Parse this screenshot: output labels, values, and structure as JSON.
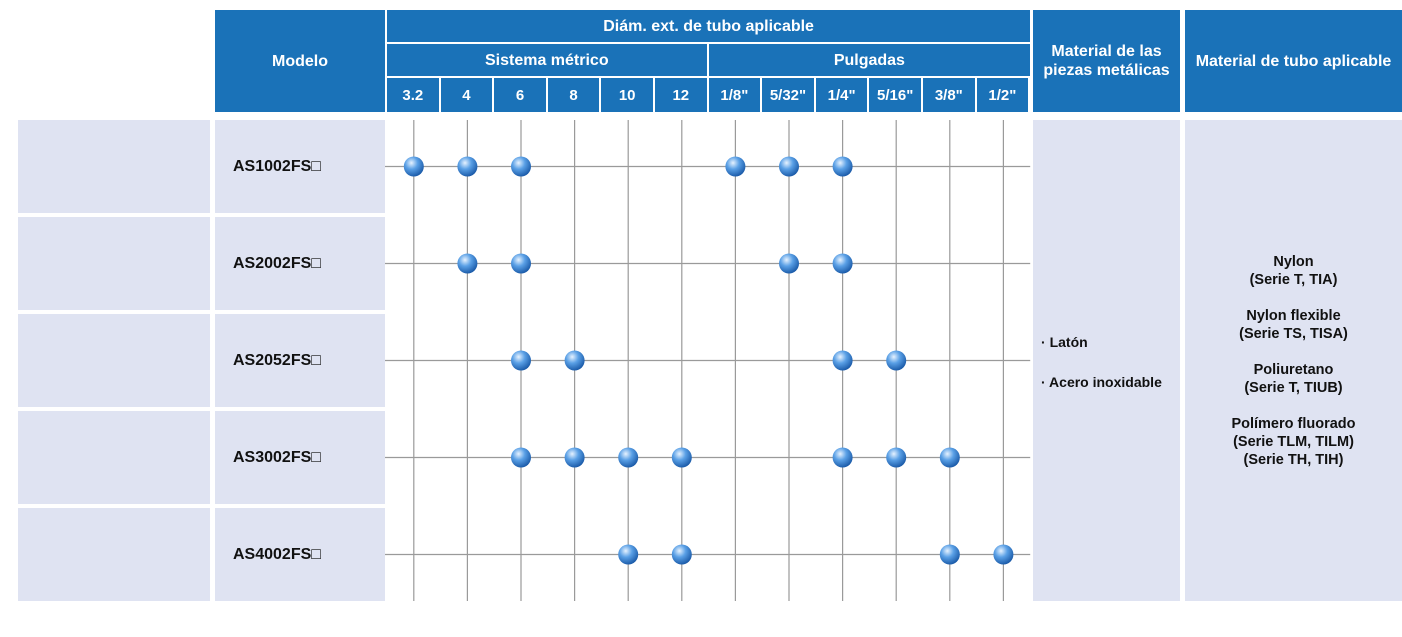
{
  "header": {
    "model": "Modelo",
    "tube_od": "Diám. ext. de tubo aplicable",
    "metric": "Sistema métrico",
    "inch": "Pulgadas",
    "sizes": [
      "3.2",
      "4",
      "6",
      "8",
      "10",
      "12",
      "1/8\"",
      "5/32\"",
      "1/4\"",
      "5/16\"",
      "3/8\"",
      "1/2\""
    ],
    "metal": "Material de las piezas metálicas",
    "tube_material": "Material de tubo aplicable"
  },
  "rows": [
    {
      "model": "AS1002FS□",
      "applicable": [
        true,
        true,
        true,
        false,
        false,
        false,
        true,
        true,
        true,
        false,
        false,
        false
      ]
    },
    {
      "model": "AS2002FS□",
      "applicable": [
        false,
        true,
        true,
        false,
        false,
        false,
        false,
        true,
        true,
        false,
        false,
        false
      ]
    },
    {
      "model": "AS2052FS□",
      "applicable": [
        false,
        false,
        true,
        true,
        false,
        false,
        false,
        false,
        true,
        true,
        false,
        false
      ]
    },
    {
      "model": "AS3002FS□",
      "applicable": [
        false,
        false,
        true,
        true,
        true,
        true,
        false,
        false,
        true,
        true,
        true,
        false
      ]
    },
    {
      "model": "AS4002FS□",
      "applicable": [
        false,
        false,
        false,
        false,
        true,
        true,
        false,
        false,
        false,
        false,
        true,
        true
      ]
    }
  ],
  "metal_materials": [
    "Latón",
    "Acero inoxidable"
  ],
  "tube_materials": [
    {
      "name": "Nylon",
      "series": [
        "(Serie T, TIA)"
      ]
    },
    {
      "name": "Nylon flexible",
      "series": [
        "(Serie TS, TISA)"
      ]
    },
    {
      "name": "Poliuretano",
      "series": [
        "(Serie T, TIUB)"
      ]
    },
    {
      "name": "Polímero fluorado",
      "series": [
        "(Serie TLM, TILM)",
        "(Serie TH, TIH)"
      ]
    }
  ]
}
